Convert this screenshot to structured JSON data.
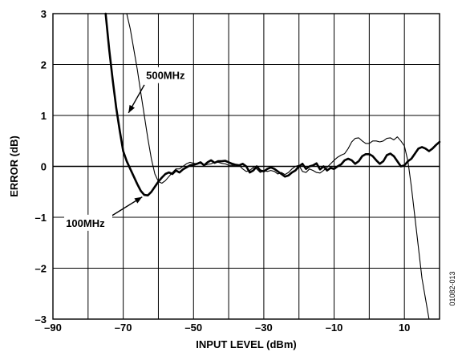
{
  "chart_data": {
    "type": "line",
    "title": "",
    "xlabel": "INPUT LEVEL (dBm)",
    "ylabel": "ERROR (dB)",
    "xlim": [
      -90,
      20
    ],
    "ylim": [
      -3,
      3
    ],
    "x_ticks": [
      -90,
      -70,
      -50,
      -30,
      -10,
      10
    ],
    "x_tick_labels": [
      "–90",
      "–70",
      "–50",
      "–30",
      "–10",
      "10"
    ],
    "y_ticks": [
      -3,
      -2,
      -1,
      0,
      1,
      2,
      3
    ],
    "y_tick_labels": [
      "–3",
      "–2",
      "–1",
      "0",
      "1",
      "2",
      "3"
    ],
    "grid": true,
    "series": [
      {
        "name": "100MHz",
        "color": "#000000",
        "weight": "thick",
        "x": [
          -75,
          -74,
          -73,
          -72,
          -71,
          -70,
          -69,
          -68,
          -67,
          -66,
          -65,
          -64,
          -63,
          -62,
          -61,
          -60,
          -59,
          -58,
          -57,
          -56,
          -55,
          -54,
          -53,
          -52,
          -51,
          -50,
          -49,
          -48,
          -47,
          -46,
          -45,
          -44,
          -43,
          -42,
          -41,
          -40,
          -39,
          -38,
          -37,
          -36,
          -35,
          -34,
          -33,
          -32,
          -31,
          -30,
          -29,
          -28,
          -27,
          -26,
          -25,
          -24,
          -23,
          -22,
          -21,
          -20,
          -19,
          -18,
          -17,
          -16,
          -15,
          -14,
          -13,
          -12,
          -11,
          -10,
          -9,
          -8,
          -7,
          -6,
          -5,
          -4,
          -3,
          -2,
          -1,
          0,
          1,
          2,
          3,
          4,
          5,
          6,
          7,
          8,
          9,
          10,
          11,
          12,
          13,
          14,
          15,
          16,
          17,
          18,
          19,
          20
        ],
        "y": [
          3.0,
          2.3,
          1.7,
          1.15,
          0.7,
          0.3,
          0.1,
          -0.05,
          -0.2,
          -0.35,
          -0.48,
          -0.56,
          -0.57,
          -0.5,
          -0.4,
          -0.3,
          -0.22,
          -0.15,
          -0.12,
          -0.15,
          -0.08,
          -0.12,
          -0.06,
          -0.02,
          0.02,
          0.03,
          0.05,
          0.08,
          0.02,
          0.08,
          0.12,
          0.07,
          0.1,
          0.1,
          0.11,
          0.08,
          0.05,
          0.03,
          0.02,
          0.05,
          0.0,
          -0.12,
          -0.08,
          0.0,
          -0.08,
          -0.1,
          -0.05,
          -0.02,
          -0.05,
          -0.1,
          -0.15,
          -0.2,
          -0.18,
          -0.12,
          -0.08,
          0.0,
          0.05,
          -0.05,
          0.0,
          0.02,
          0.06,
          -0.06,
          0.0,
          -0.08,
          -0.03,
          -0.05,
          0.0,
          0.04,
          0.12,
          0.15,
          0.12,
          0.05,
          0.1,
          0.2,
          0.24,
          0.24,
          0.2,
          0.12,
          0.05,
          0.1,
          0.22,
          0.25,
          0.2,
          0.1,
          0.0,
          0.02,
          0.1,
          0.15,
          0.25,
          0.35,
          0.38,
          0.35,
          0.3,
          0.35,
          0.42,
          0.48
        ]
      },
      {
        "name": "500MHz",
        "color": "#000000",
        "weight": "thin",
        "x": [
          -69,
          -68,
          -67,
          -66,
          -65,
          -64,
          -63,
          -62,
          -61,
          -60,
          -59,
          -58,
          -57,
          -56,
          -55,
          -54,
          -53,
          -52,
          -51,
          -50,
          -49,
          -48,
          -47,
          -46,
          -45,
          -44,
          -43,
          -42,
          -41,
          -40,
          -39,
          -38,
          -37,
          -36,
          -35,
          -34,
          -33,
          -32,
          -31,
          -30,
          -29,
          -28,
          -27,
          -26,
          -25,
          -24,
          -23,
          -22,
          -21,
          -20,
          -19,
          -18,
          -17,
          -16,
          -15,
          -14,
          -13,
          -12,
          -11,
          -10,
          -9,
          -8,
          -7,
          -6,
          -5,
          -4,
          -3,
          -2,
          -1,
          0,
          1,
          2,
          3,
          4,
          5,
          6,
          7,
          8,
          9,
          10,
          11,
          12,
          13,
          14,
          15,
          16,
          17
        ],
        "y": [
          3.0,
          2.7,
          2.3,
          1.9,
          1.45,
          1.0,
          0.55,
          0.15,
          -0.15,
          -0.3,
          -0.33,
          -0.28,
          -0.2,
          -0.12,
          -0.05,
          -0.05,
          0.0,
          0.05,
          0.08,
          0.06,
          0.05,
          0.06,
          0.02,
          0.04,
          0.05,
          0.08,
          0.08,
          0.06,
          0.05,
          0.02,
          0.02,
          0.0,
          0.02,
          -0.05,
          -0.1,
          -0.08,
          -0.02,
          -0.05,
          -0.12,
          -0.08,
          -0.1,
          -0.08,
          -0.1,
          -0.15,
          -0.12,
          -0.16,
          -0.12,
          -0.05,
          0.0,
          0.02,
          -0.1,
          -0.12,
          -0.05,
          -0.08,
          -0.12,
          -0.13,
          -0.08,
          -0.02,
          0.05,
          0.12,
          0.18,
          0.22,
          0.25,
          0.35,
          0.48,
          0.55,
          0.56,
          0.5,
          0.45,
          0.45,
          0.5,
          0.5,
          0.48,
          0.5,
          0.55,
          0.56,
          0.52,
          0.58,
          0.5,
          0.4,
          0.1,
          -0.4,
          -1.0,
          -1.6,
          -2.2,
          -2.6,
          -3.0
        ]
      }
    ],
    "annotations": [
      {
        "text": "500MHz",
        "arrow_from": [
          -64,
          1.6
        ],
        "arrow_to": [
          -68.5,
          1.05
        ]
      },
      {
        "text": "100MHz",
        "arrow_from": [
          -73.5,
          -0.98
        ],
        "arrow_to": [
          -64.6,
          -0.6
        ]
      }
    ],
    "figure_code": "01082-013"
  }
}
